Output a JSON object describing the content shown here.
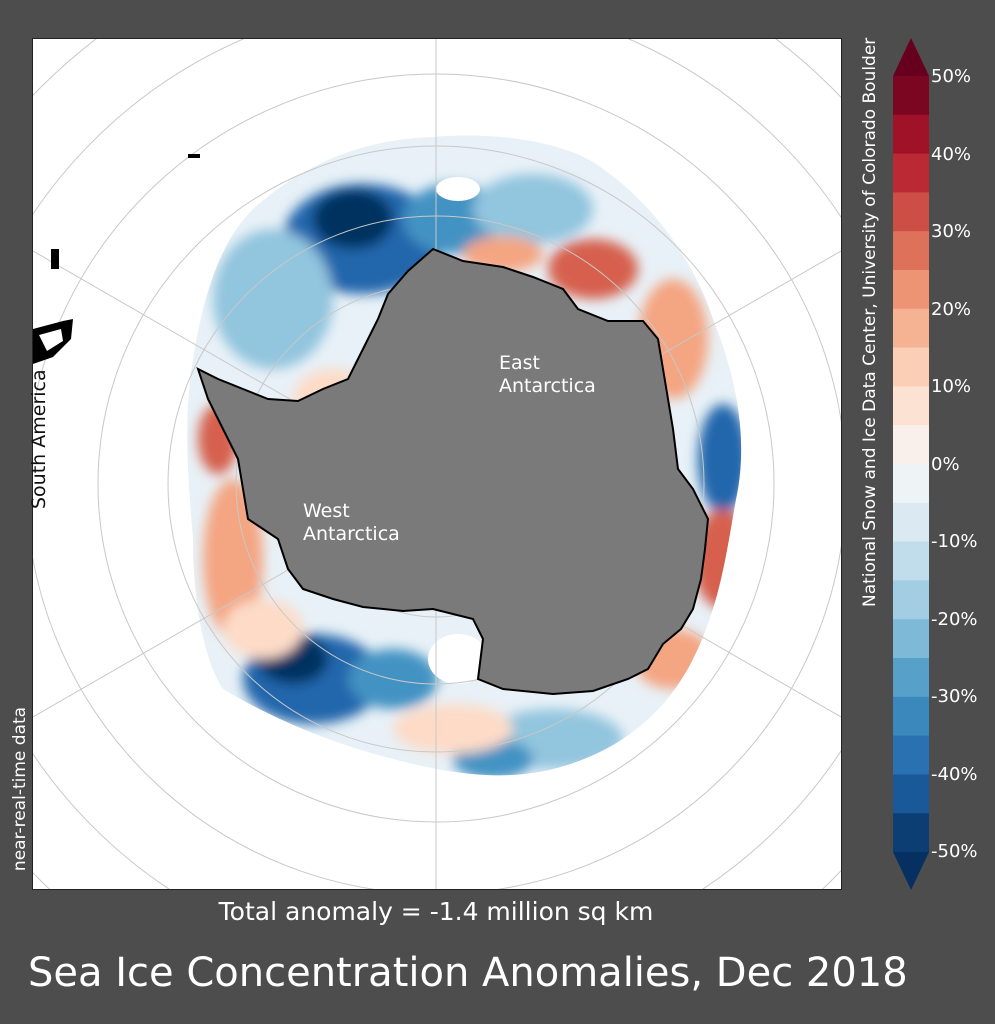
{
  "title": "Sea Ice Concentration Anomalies, Dec 2018",
  "total_anomaly": "Total anomaly = -1.4 million sq km",
  "credit": "National Snow and Ice Data Center, University of Colorado Boulder",
  "data_note": "near-real-time data",
  "map_labels": {
    "south_america": "South America",
    "east_line1": "East",
    "east_line2": "Antarctica",
    "west_line1": "West",
    "west_line2": "Antarctica"
  },
  "colorbar": {
    "ticks": [
      "50%",
      "40%",
      "30%",
      "20%",
      "10%",
      "0%",
      "-10%",
      "-20%",
      "-30%",
      "-40%",
      "-50%"
    ],
    "colors": [
      "#67001f",
      "#b2182b",
      "#d6604d",
      "#f4a582",
      "#fddbc7",
      "#f7f7f7",
      "#d1e5f0",
      "#92c5de",
      "#4393c3",
      "#2166ac",
      "#053061"
    ]
  },
  "colors": {
    "background": "#4d4d4d",
    "land": "#7a7a7a",
    "ocean": "#ffffff"
  }
}
